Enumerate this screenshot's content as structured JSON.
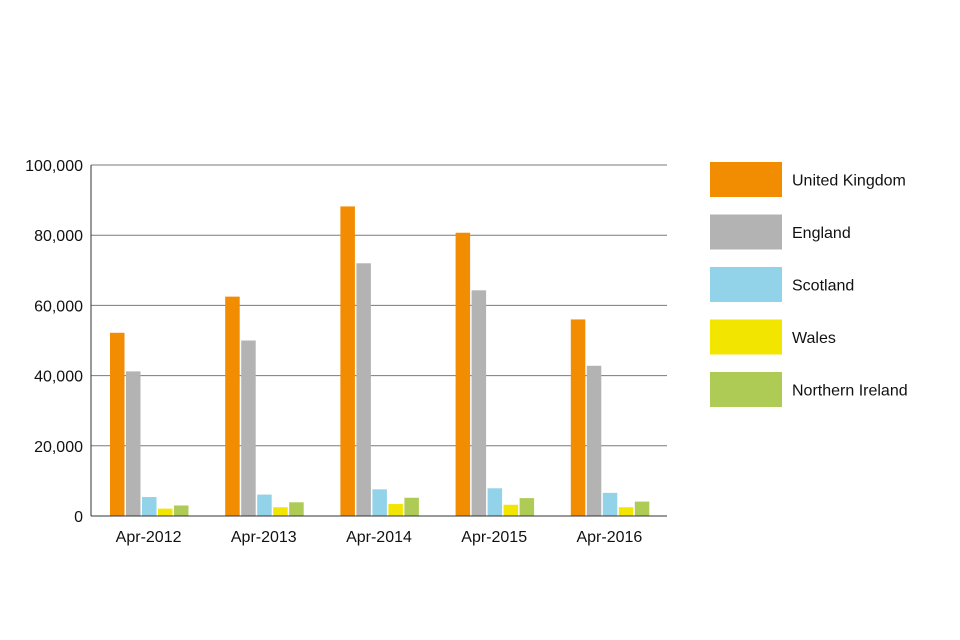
{
  "chart_data": {
    "type": "bar",
    "categories": [
      "Apr-2012",
      "Apr-2013",
      "Apr-2014",
      "Apr-2015",
      "Apr-2016"
    ],
    "series": [
      {
        "name": "United Kingdom",
        "color": "#F28C00",
        "values": [
          52200,
          62500,
          88200,
          80700,
          56000
        ]
      },
      {
        "name": "England",
        "color": "#B3B3B3",
        "values": [
          41200,
          50000,
          72000,
          64300,
          42800
        ]
      },
      {
        "name": "Scotland",
        "color": "#92D3EA",
        "values": [
          5400,
          6100,
          7600,
          7900,
          6600
        ]
      },
      {
        "name": "Wales",
        "color": "#F2E500",
        "values": [
          2100,
          2500,
          3400,
          3200,
          2500
        ]
      },
      {
        "name": "Northern Ireland",
        "color": "#ADCB55",
        "values": [
          3000,
          3900,
          5200,
          5100,
          4100
        ]
      }
    ],
    "yticks": [
      "0",
      "20,000",
      "40,000",
      "60,000",
      "80,000",
      "100,000"
    ],
    "ylim": [
      0,
      100000
    ],
    "title": "",
    "xlabel": "",
    "ylabel": "",
    "grid": true,
    "legend": "right"
  }
}
